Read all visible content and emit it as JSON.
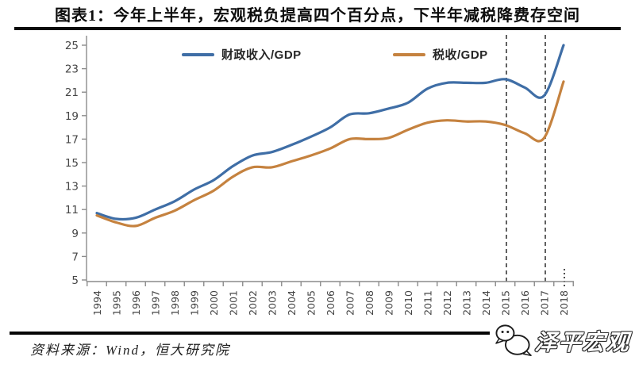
{
  "title": "图表1：今年上半年，宏观税负提高四个百分点，下半年减税降费存空间",
  "source_note": "资料来源：Wind，恒大研究院",
  "watermark_text": "泽平宏观",
  "colors": {
    "fiscal_line": "#3F6EA6",
    "tax_line": "#C5823F",
    "axis": "#8c8c8c",
    "tick_label": "#464646",
    "dashed_line": "#3a3a3a",
    "rule": "#0a0a0a"
  },
  "chart_data": {
    "type": "line",
    "title": "图表1：今年上半年，宏观税负提高四个百分点，下半年减税降费存空间",
    "x": [
      1994,
      1995,
      1996,
      1997,
      1998,
      1999,
      2000,
      2001,
      2002,
      2003,
      2004,
      2005,
      2006,
      2007,
      2008,
      2009,
      2010,
      2011,
      2012,
      2013,
      2014,
      2015,
      2016,
      2017,
      2018
    ],
    "series": [
      {
        "name": "财政收入/GDP",
        "color": "#3F6EA6",
        "values": [
          10.7,
          10.2,
          10.3,
          11.0,
          11.7,
          12.7,
          13.5,
          14.7,
          15.6,
          15.9,
          16.5,
          17.2,
          18.0,
          19.1,
          19.2,
          19.6,
          20.1,
          21.3,
          21.8,
          21.8,
          21.8,
          22.1,
          21.4,
          20.7,
          25.0
        ]
      },
      {
        "name": "税收/GDP",
        "color": "#C5823F",
        "values": [
          10.5,
          9.9,
          9.6,
          10.3,
          10.9,
          11.8,
          12.6,
          13.8,
          14.6,
          14.6,
          15.1,
          15.6,
          16.2,
          17.0,
          17.0,
          17.1,
          17.8,
          18.4,
          18.6,
          18.5,
          18.5,
          18.2,
          17.5,
          17.1,
          21.9
        ]
      }
    ],
    "ylim": [
      5,
      25
    ],
    "yticks": [
      5,
      7,
      9,
      11,
      13,
      15,
      17,
      19,
      21,
      23,
      25
    ],
    "grid": false,
    "legend_position": "top-inside",
    "annotations": {
      "dashed_vlines_x": [
        2015,
        2017
      ],
      "dotted_axis_mark_x": 2018
    }
  }
}
